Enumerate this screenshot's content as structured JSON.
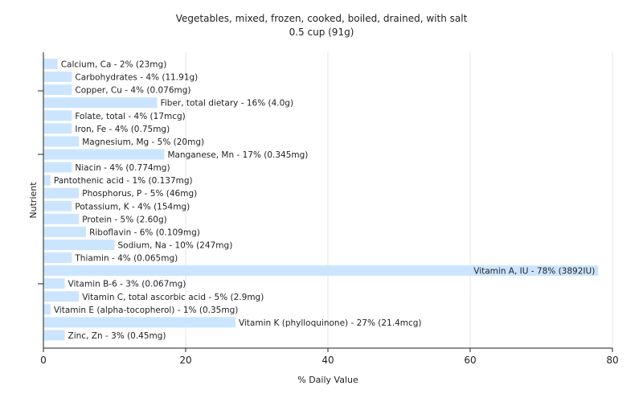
{
  "chart_data": {
    "type": "bar",
    "orientation": "horizontal",
    "title": "Vegetables, mixed, frozen, cooked, boiled, drained, with salt",
    "subtitle": "0.5 cup (91g)",
    "xlabel": "% Daily Value",
    "ylabel": "Nutrient",
    "xlim": [
      0,
      80
    ],
    "xticks": [
      0,
      20,
      40,
      60,
      80
    ],
    "grid": "vertical",
    "bar_color": "#cce5ff",
    "categories": [
      "Calcium, Ca",
      "Carbohydrates",
      "Copper, Cu",
      "Fiber, total dietary",
      "Folate, total",
      "Iron, Fe",
      "Magnesium, Mg",
      "Manganese, Mn",
      "Niacin",
      "Pantothenic acid",
      "Phosphorus, P",
      "Potassium, K",
      "Protein",
      "Riboflavin",
      "Sodium, Na",
      "Thiamin",
      "Vitamin A, IU",
      "Vitamin B-6",
      "Vitamin C, total ascorbic acid",
      "Vitamin E (alpha-tocopherol)",
      "Vitamin K (phylloquinone)",
      "Zinc, Zn"
    ],
    "values": [
      2,
      4,
      4,
      16,
      4,
      4,
      5,
      17,
      4,
      1,
      5,
      4,
      5,
      6,
      10,
      4,
      78,
      3,
      5,
      1,
      27,
      3
    ],
    "labels": [
      "Calcium, Ca - 2% (23mg)",
      "Carbohydrates - 4% (11.91g)",
      "Copper, Cu - 4% (0.076mg)",
      "Fiber, total dietary - 16% (4.0g)",
      "Folate, total - 4% (17mcg)",
      "Iron, Fe - 4% (0.75mg)",
      "Magnesium, Mg - 5% (20mg)",
      "Manganese, Mn - 17% (0.345mg)",
      "Niacin - 4% (0.774mg)",
      "Pantothenic acid - 1% (0.137mg)",
      "Phosphorus, P - 5% (46mg)",
      "Potassium, K - 4% (154mg)",
      "Protein - 5% (2.60g)",
      "Riboflavin - 6% (0.109mg)",
      "Sodium, Na - 10% (247mg)",
      "Thiamin - 4% (0.065mg)",
      "Vitamin A, IU - 78% (3892IU)",
      "Vitamin B-6 - 3% (0.067mg)",
      "Vitamin C, total ascorbic acid - 5% (2.9mg)",
      "Vitamin E (alpha-tocopherol) - 1% (0.35mg)",
      "Vitamin K (phylloquinone) - 27% (21.4mcg)",
      "Zinc, Zn - 3% (0.45mg)"
    ]
  }
}
